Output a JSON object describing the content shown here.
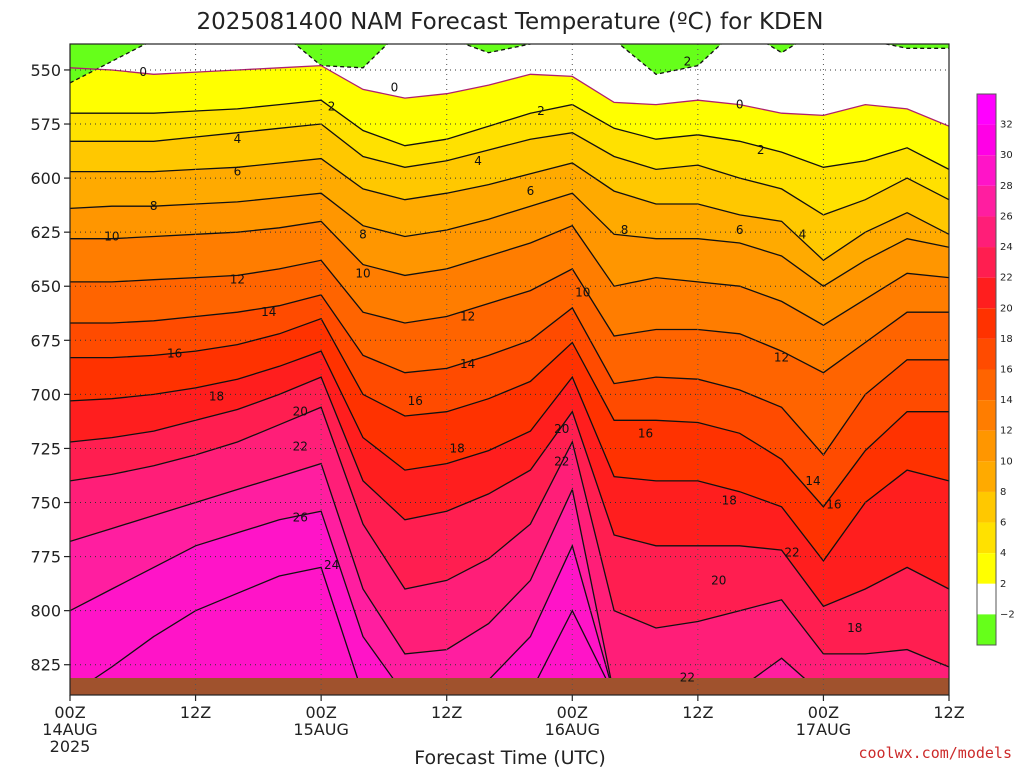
{
  "chart_data": {
    "type": "heatmap",
    "title": "2025081400 NAM Forecast Temperature (ºC) for KDEN",
    "xlabel": "Forecast Time (UTC)",
    "ylabel": "",
    "x_ticks": [
      {
        "hour": 0,
        "labels": [
          "00Z",
          "14AUG",
          "2025"
        ]
      },
      {
        "hour": 12,
        "labels": [
          "12Z"
        ]
      },
      {
        "hour": 24,
        "labels": [
          "00Z",
          "15AUG"
        ]
      },
      {
        "hour": 36,
        "labels": [
          "12Z"
        ]
      },
      {
        "hour": 48,
        "labels": [
          "00Z",
          "16AUG"
        ]
      },
      {
        "hour": 60,
        "labels": [
          "12Z"
        ]
      },
      {
        "hour": 72,
        "labels": [
          "00Z",
          "17AUG"
        ]
      },
      {
        "hour": 84,
        "labels": [
          "12Z"
        ]
      }
    ],
    "xlim": [
      0,
      84
    ],
    "y_ticks": [
      "550",
      "575",
      "600",
      "625",
      "650",
      "675",
      "700",
      "725",
      "750",
      "775",
      "800",
      "825"
    ],
    "ylim": [
      538,
      839
    ],
    "y_inverted": true,
    "grid": true,
    "ground_color": "#a0522d",
    "colorbar": {
      "labels": [
        "32",
        "30",
        "28",
        "26",
        "24",
        "22",
        "20",
        "18",
        "16",
        "14",
        "12",
        "10",
        "8",
        "6",
        "4",
        "2",
        "−2"
      ],
      "colors": [
        "#ff00ff",
        "#ff00e6",
        "#ff14c8",
        "#ff1ea0",
        "#ff1e78",
        "#ff1e50",
        "#ff1e1e",
        "#ff3200",
        "#ff4b00",
        "#ff6400",
        "#ff7d00",
        "#ff9600",
        "#ffaa00",
        "#ffc800",
        "#ffe100",
        "#ffff00",
        "#ffffff",
        "#66ff1a"
      ]
    },
    "isotherms": [
      {
        "t": -2,
        "p": [
          556,
          546,
          536,
          532,
          532,
          532,
          548,
          549,
          530,
          535,
          542,
          538,
          532,
          536,
          552,
          548,
          530,
          542,
          530,
          536,
          540,
          540
        ]
      },
      {
        "t": 0,
        "p": [
          549,
          550,
          552,
          551,
          550,
          549,
          548,
          559,
          563,
          561,
          557,
          552,
          553,
          565,
          566,
          564,
          566,
          570,
          571,
          566,
          568,
          576
        ]
      },
      {
        "t": 2,
        "p": [
          570,
          570,
          570,
          569,
          568,
          566,
          564,
          578,
          585,
          582,
          576,
          570,
          566,
          577,
          582,
          580,
          583,
          588,
          595,
          592,
          586,
          596
        ]
      },
      {
        "t": 4,
        "p": [
          583,
          583,
          583,
          581,
          579,
          577,
          575,
          590,
          595,
          592,
          587,
          582,
          579,
          590,
          596,
          594,
          600,
          605,
          617,
          610,
          600,
          610
        ]
      },
      {
        "t": 6,
        "p": [
          597,
          597,
          597,
          596,
          595,
          593,
          591,
          605,
          610,
          607,
          603,
          598,
          593,
          606,
          612,
          612,
          617,
          620,
          638,
          625,
          616,
          626
        ]
      },
      {
        "t": 8,
        "p": [
          614,
          613,
          613,
          612,
          611,
          609,
          607,
          622,
          627,
          624,
          619,
          613,
          607,
          626,
          628,
          628,
          630,
          636,
          650,
          638,
          628,
          632
        ]
      },
      {
        "t": 10,
        "p": [
          628,
          628,
          627,
          626,
          625,
          623,
          620,
          640,
          645,
          642,
          636,
          630,
          622,
          650,
          646,
          648,
          650,
          657,
          668,
          656,
          644,
          646
        ]
      },
      {
        "t": 12,
        "p": [
          648,
          648,
          647,
          646,
          645,
          642,
          638,
          662,
          667,
          664,
          658,
          652,
          642,
          673,
          670,
          670,
          672,
          680,
          690,
          676,
          662,
          662
        ]
      },
      {
        "t": 14,
        "p": [
          667,
          667,
          666,
          664,
          662,
          659,
          654,
          682,
          690,
          688,
          682,
          675,
          660,
          695,
          692,
          693,
          698,
          706,
          728,
          700,
          684,
          684
        ]
      },
      {
        "t": 16,
        "p": [
          683,
          683,
          682,
          680,
          677,
          672,
          665,
          700,
          710,
          708,
          702,
          694,
          676,
          712,
          712,
          713,
          718,
          730,
          752,
          726,
          708,
          708
        ]
      },
      {
        "t": 18,
        "p": [
          703,
          702,
          700,
          697,
          693,
          687,
          680,
          720,
          735,
          732,
          726,
          717,
          692,
          738,
          740,
          740,
          745,
          752,
          777,
          750,
          735,
          740
        ]
      },
      {
        "t": 20,
        "p": [
          722,
          720,
          717,
          712,
          707,
          700,
          692,
          740,
          758,
          754,
          746,
          735,
          708,
          765,
          770,
          770,
          770,
          772,
          798,
          790,
          780,
          790
        ]
      },
      {
        "t": 22,
        "p": [
          740,
          737,
          733,
          728,
          722,
          714,
          706,
          760,
          790,
          786,
          776,
          760,
          722,
          800,
          808,
          805,
          800,
          795,
          820,
          820,
          818,
          826
        ]
      },
      {
        "t": 24,
        "p": [
          768,
          762,
          756,
          750,
          744,
          738,
          732,
          790,
          820,
          818,
          806,
          786,
          744,
          839,
          839,
          839,
          836,
          822,
          839,
          839,
          839,
          839
        ]
      },
      {
        "t": 26,
        "p": [
          800,
          790,
          780,
          770,
          764,
          758,
          754,
          812,
          839,
          839,
          832,
          812,
          770,
          839,
          839,
          839,
          839,
          839,
          839,
          839,
          839,
          839
        ]
      },
      {
        "t": 28,
        "p": [
          839,
          826,
          812,
          800,
          792,
          784,
          780,
          839,
          839,
          839,
          839,
          838,
          800,
          839,
          839,
          839,
          839,
          839,
          839,
          839,
          839,
          839
        ]
      }
    ],
    "contour_labels": [
      {
        "text": "0",
        "x": 7,
        "p": 551
      },
      {
        "text": "0",
        "x": 31,
        "p": 558
      },
      {
        "text": "0",
        "x": 64,
        "p": 566
      },
      {
        "text": "2",
        "x": 25,
        "p": 567
      },
      {
        "text": "2",
        "x": 45,
        "p": 569
      },
      {
        "text": "2",
        "x": 66,
        "p": 587
      },
      {
        "text": "2",
        "x": 59,
        "p": 546
      },
      {
        "text": "4",
        "x": 16,
        "p": 582
      },
      {
        "text": "4",
        "x": 39,
        "p": 592
      },
      {
        "text": "4",
        "x": 70,
        "p": 626
      },
      {
        "text": "6",
        "x": 16,
        "p": 597
      },
      {
        "text": "6",
        "x": 44,
        "p": 606
      },
      {
        "text": "6",
        "x": 64,
        "p": 624
      },
      {
        "text": "8",
        "x": 8,
        "p": 613
      },
      {
        "text": "8",
        "x": 28,
        "p": 626
      },
      {
        "text": "8",
        "x": 53,
        "p": 624
      },
      {
        "text": "10",
        "x": 4,
        "p": 627
      },
      {
        "text": "10",
        "x": 28,
        "p": 644
      },
      {
        "text": "10",
        "x": 49,
        "p": 653
      },
      {
        "text": "12",
        "x": 16,
        "p": 647
      },
      {
        "text": "12",
        "x": 38,
        "p": 664
      },
      {
        "text": "12",
        "x": 68,
        "p": 683
      },
      {
        "text": "14",
        "x": 19,
        "p": 662
      },
      {
        "text": "14",
        "x": 38,
        "p": 686
      },
      {
        "text": "14",
        "x": 71,
        "p": 740
      },
      {
        "text": "16",
        "x": 10,
        "p": 681
      },
      {
        "text": "16",
        "x": 33,
        "p": 703
      },
      {
        "text": "16",
        "x": 55,
        "p": 718
      },
      {
        "text": "16",
        "x": 73,
        "p": 751
      },
      {
        "text": "18",
        "x": 14,
        "p": 701
      },
      {
        "text": "18",
        "x": 37,
        "p": 725
      },
      {
        "text": "18",
        "x": 63,
        "p": 749
      },
      {
        "text": "18",
        "x": 75,
        "p": 808
      },
      {
        "text": "20",
        "x": 22,
        "p": 708
      },
      {
        "text": "20",
        "x": 47,
        "p": 716
      },
      {
        "text": "20",
        "x": 62,
        "p": 786
      },
      {
        "text": "22",
        "x": 22,
        "p": 724
      },
      {
        "text": "22",
        "x": 47,
        "p": 731
      },
      {
        "text": "22",
        "x": 69,
        "p": 773
      },
      {
        "text": "22",
        "x": 59,
        "p": 831
      },
      {
        "text": "24",
        "x": 25,
        "p": 779
      },
      {
        "text": "26",
        "x": 22,
        "p": 757
      }
    ]
  },
  "credit": "coolwx.com/models"
}
